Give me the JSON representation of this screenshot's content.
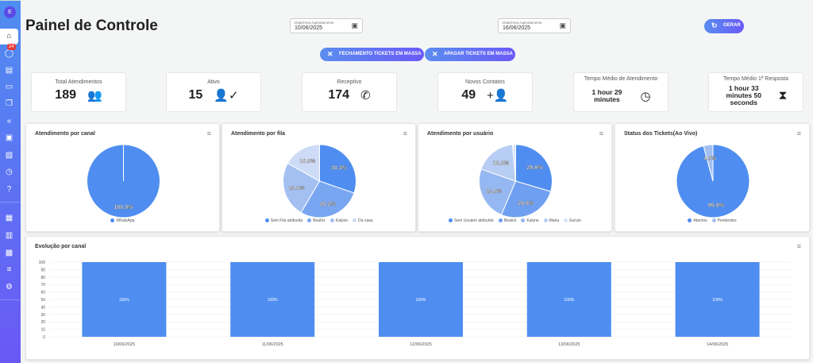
{
  "sidebar": {
    "avatar": "E",
    "badge": "24",
    "items": [
      "home",
      "whatsapp",
      "contacts",
      "panel",
      "chats",
      "quick-replies",
      "schedule",
      "tags",
      "clock",
      "help",
      "kanban",
      "reports",
      "finance",
      "queues",
      "settings"
    ]
  },
  "header": {
    "title": "Painel de Controle",
    "date_label": "Data/Hora Agendamento",
    "date_from": "10/06/2025",
    "date_to": "16/06/2025",
    "generate": "GERAR",
    "close_mass": "FECHAMENTO TICKETS EM MASSA",
    "delete_mass": "APAGAR TICKETS EM MASSA"
  },
  "stats": [
    {
      "label": "Total Atendimentos",
      "value": "189",
      "icon": "group-icon"
    },
    {
      "label": "Ativo",
      "value": "15",
      "icon": "person-check-icon"
    },
    {
      "label": "Receptivo",
      "value": "174",
      "icon": "phone-callback-icon"
    },
    {
      "label": "Novos Contatos",
      "value": "49",
      "icon": "person-add-icon"
    },
    {
      "label": "Tempo Médio de Atendimento",
      "value": "1 hour 29 minutes",
      "icon": "clock-icon"
    },
    {
      "label": "Tempo Médio 1ª Resposta",
      "value": "1 hour 33 minutes 50 seconds",
      "icon": "hourglass-icon"
    }
  ],
  "chart_data": [
    {
      "type": "pie",
      "title": "Atendimento por canal",
      "categories": [
        "WhatsApp"
      ],
      "values": [
        100.0
      ],
      "labels": [
        "100.0%"
      ],
      "colors": [
        "#4f8ef0"
      ]
    },
    {
      "type": "pie",
      "title": "Atendimento por fila",
      "categories": [
        "Sem Fila atribuída",
        "Beatriz",
        "Kalyne",
        "Da casa"
      ],
      "values": [
        30.3,
        28.2,
        24.6,
        16.9
      ],
      "labels": [
        "30.3%",
        "28.2%",
        "24.6%",
        "16.9%"
      ],
      "colors": [
        "#4f8ef0",
        "#79a6f0",
        "#a4c0f2",
        "#cddbf7"
      ]
    },
    {
      "type": "pie",
      "title": "Atendimento por usuário",
      "categories": [
        "Sem Usuário atribuído",
        "Beatriz",
        "Kalyne",
        "Maria",
        "Eurum"
      ],
      "values": [
        29.6,
        26.8,
        23.9,
        18.3,
        1.4
      ],
      "labels": [
        "29.6%",
        "26.8%",
        "23.9%",
        "18.3%",
        ""
      ],
      "colors": [
        "#4f8ef0",
        "#6f9ff0",
        "#96b8f2",
        "#b7cdf4",
        "#d8e4f9"
      ]
    },
    {
      "type": "pie",
      "title": "Status dos Tickets(Ao Vivo)",
      "categories": [
        "Abertos",
        "Pendentes"
      ],
      "values": [
        95.8,
        4.2
      ],
      "labels": [
        "95.8%",
        "4.2%"
      ],
      "colors": [
        "#4f8ef0",
        "#a4c0f2"
      ]
    },
    {
      "type": "bar",
      "title": "Evolução por canal",
      "categories": [
        "10/06/2025",
        "11/06/2025",
        "12/06/2025",
        "13/06/2025",
        "14/06/2025"
      ],
      "values": [
        100,
        100,
        100,
        100,
        100
      ],
      "labels": [
        "100%",
        "100%",
        "100%",
        "100%",
        "100%"
      ],
      "ylim": [
        0,
        100
      ],
      "yticks": [
        0,
        10,
        20,
        30,
        40,
        50,
        60,
        70,
        80,
        90,
        100
      ],
      "color": "#4f8ef0"
    }
  ]
}
